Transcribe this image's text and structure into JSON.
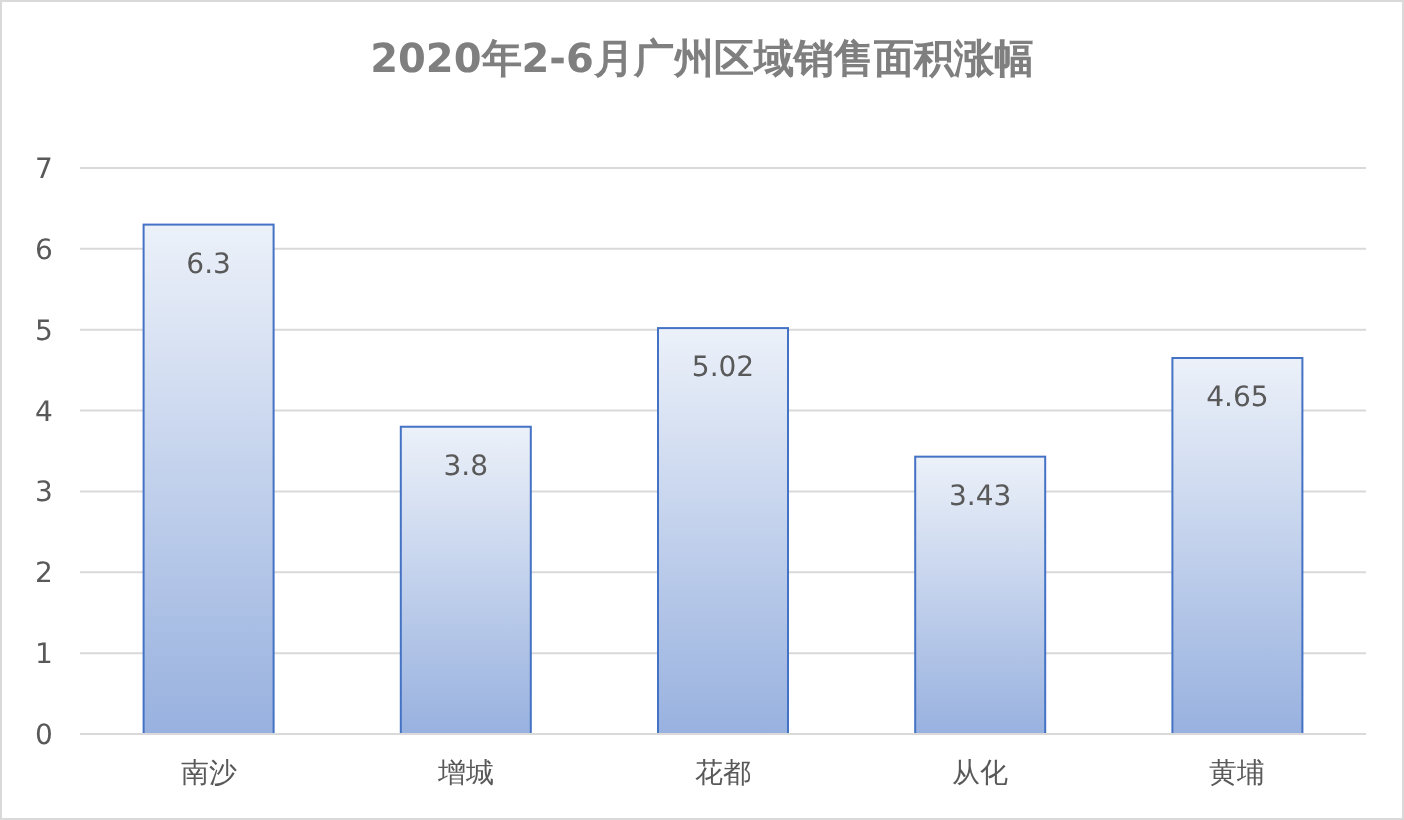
{
  "chart_data": {
    "type": "bar",
    "title": "2020年2-6月广州区域销售面积涨幅",
    "categories": [
      "南沙",
      "增城",
      "花都",
      "从化",
      "黄埔"
    ],
    "values": [
      6.3,
      3.8,
      5.02,
      3.43,
      4.65
    ],
    "color": "#4472c4",
    "ylim": [
      0,
      7
    ],
    "yticks": [
      0,
      1,
      2,
      3,
      4,
      5,
      6,
      7
    ],
    "grid": "y",
    "data_labels": true
  }
}
